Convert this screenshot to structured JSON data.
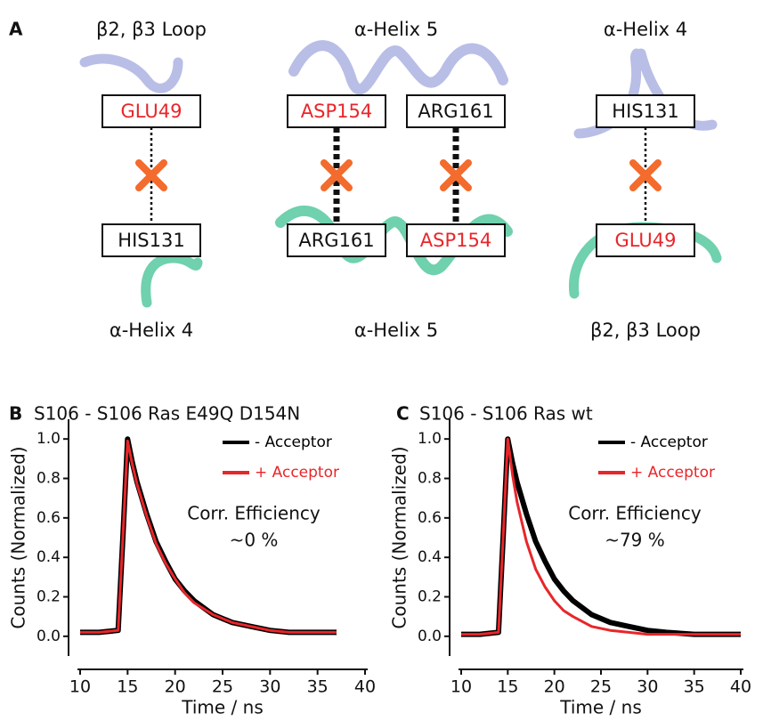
{
  "panel_a": {
    "label": "A",
    "groups": [
      {
        "top": "β2,  β3 Loop",
        "bottom": "α-Helix 4",
        "pairs": [
          {
            "upper": "GLU49",
            "upper_color": "#e8262a",
            "lower": "HIS131",
            "lower_color": "#111111"
          }
        ]
      },
      {
        "top": "α-Helix 5",
        "bottom": "α-Helix 5",
        "pairs": [
          {
            "upper": "ASP154",
            "upper_color": "#e8262a",
            "lower": "ARG161",
            "lower_color": "#111111"
          },
          {
            "upper": "ARG161",
            "upper_color": "#111111",
            "lower": "ASP154",
            "lower_color": "#e8262a"
          }
        ]
      },
      {
        "top": "α-Helix 4",
        "bottom": "β2,  β3 Loop",
        "pairs": [
          {
            "upper": "HIS131",
            "upper_color": "#111111",
            "lower": "GLU49",
            "lower_color": "#e8262a"
          }
        ]
      }
    ]
  },
  "chart_data": [
    {
      "type": "line",
      "label": "B",
      "title": "S106 - S106 Ras E49Q D154N",
      "x_label": "Time  / ns",
      "y_label": "Counts (Normalized)",
      "annotation": [
        "Corr. Efficiency",
        "~0 %"
      ],
      "legend": "upper right",
      "xlim": [
        10,
        40
      ],
      "xticks": [
        10,
        15,
        20,
        25,
        30,
        35,
        40
      ],
      "ylim": [
        -0.1,
        1.1
      ],
      "yticks": [
        {
          "value": 0,
          "label": "0.0"
        },
        0.2,
        0.4,
        0.6,
        0.8,
        {
          "value": 1,
          "label": "1.0"
        }
      ],
      "x": [
        10,
        12,
        14,
        14.5,
        15,
        15.5,
        16,
        17,
        18,
        19,
        20,
        21,
        22,
        24,
        26,
        28,
        30,
        32,
        35,
        37
      ],
      "series": [
        {
          "name": "- Acceptor",
          "color": "#000000",
          "values": [
            0.02,
            0.02,
            0.03,
            0.5,
            1.0,
            0.88,
            0.78,
            0.62,
            0.48,
            0.38,
            0.29,
            0.23,
            0.18,
            0.11,
            0.07,
            0.05,
            0.03,
            0.02,
            0.02,
            0.02
          ]
        },
        {
          "name": "+ Acceptor",
          "color": "#e8262a",
          "values": [
            0.02,
            0.02,
            0.03,
            0.5,
            0.99,
            0.87,
            0.77,
            0.61,
            0.47,
            0.37,
            0.29,
            0.22,
            0.17,
            0.11,
            0.07,
            0.05,
            0.03,
            0.02,
            0.02,
            0.02
          ]
        }
      ]
    },
    {
      "type": "line",
      "label": "C",
      "title": "S106 - S106 Ras wt",
      "x_label": "Time  / ns",
      "y_label": "Counts (Normalized)",
      "annotation": [
        "Corr. Efficiency",
        "~79 %"
      ],
      "legend": "upper right",
      "xlim": [
        10,
        40
      ],
      "xticks": [
        10,
        15,
        20,
        25,
        30,
        35,
        40
      ],
      "ylim": [
        -0.1,
        1.1
      ],
      "yticks": [
        {
          "value": 0,
          "label": "0.0"
        },
        0.2,
        0.4,
        0.6,
        0.8,
        {
          "value": 1,
          "label": "1.0"
        }
      ],
      "x": [
        10,
        12,
        14,
        14.5,
        15,
        15.5,
        16,
        17,
        18,
        19,
        20,
        21,
        22,
        24,
        26,
        28,
        30,
        32,
        35,
        40
      ],
      "series": [
        {
          "name": "- Acceptor",
          "color": "#000000",
          "values": [
            0.01,
            0.01,
            0.02,
            0.5,
            1.0,
            0.88,
            0.78,
            0.62,
            0.48,
            0.38,
            0.29,
            0.23,
            0.18,
            0.11,
            0.07,
            0.05,
            0.03,
            0.02,
            0.01,
            0.01
          ]
        },
        {
          "name": "+ Acceptor",
          "color": "#e8262a",
          "values": [
            0.01,
            0.01,
            0.02,
            0.5,
            1.0,
            0.82,
            0.68,
            0.48,
            0.34,
            0.25,
            0.18,
            0.13,
            0.1,
            0.05,
            0.03,
            0.02,
            0.01,
            0.01,
            0.01,
            0.01
          ]
        }
      ]
    }
  ]
}
